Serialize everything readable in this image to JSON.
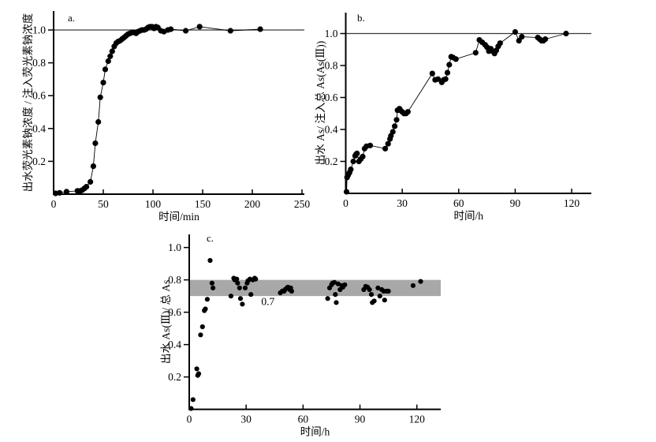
{
  "figure": {
    "background": "#ffffff",
    "axis_color": "#000000",
    "marker_color": "#000000"
  },
  "chart_data": [
    {
      "id": "a",
      "type": "scatter",
      "panel_label": "a.",
      "xlabel": "时间/min",
      "ylabel": "出水荧光素钠浓度 / 注入荧光素钠浓度",
      "xlim": [
        0,
        252
      ],
      "ylim": [
        0,
        1.12
      ],
      "xticks": [
        0,
        50,
        100,
        150,
        200,
        250
      ],
      "yticks": [
        0.2,
        0.4,
        0.6,
        0.8,
        1.0
      ],
      "grid": false,
      "reference_line_y": 1.0,
      "connect_points": true,
      "points": [
        [
          2,
          0.005
        ],
        [
          6,
          0.008
        ],
        [
          13,
          0.015
        ],
        [
          24,
          0.02
        ],
        [
          27,
          0.02
        ],
        [
          29,
          0.025
        ],
        [
          31,
          0.035
        ],
        [
          33,
          0.045
        ],
        [
          37,
          0.075
        ],
        [
          40,
          0.17
        ],
        [
          42,
          0.31
        ],
        [
          45,
          0.44
        ],
        [
          47,
          0.59
        ],
        [
          50,
          0.68
        ],
        [
          52,
          0.76
        ],
        [
          55,
          0.81
        ],
        [
          57,
          0.84
        ],
        [
          59,
          0.87
        ],
        [
          61,
          0.9
        ],
        [
          63,
          0.92
        ],
        [
          65,
          0.93
        ],
        [
          67,
          0.935
        ],
        [
          69,
          0.945
        ],
        [
          71,
          0.955
        ],
        [
          73,
          0.965
        ],
        [
          75,
          0.975
        ],
        [
          77,
          0.98
        ],
        [
          79,
          0.985
        ],
        [
          81,
          0.985
        ],
        [
          83,
          0.98
        ],
        [
          85,
          0.99
        ],
        [
          87,
          0.995
        ],
        [
          89,
          1.0
        ],
        [
          91,
          1.0
        ],
        [
          93,
          1.005
        ],
        [
          95,
          1.015
        ],
        [
          97,
          1.02
        ],
        [
          99,
          1.02
        ],
        [
          101,
          1.01
        ],
        [
          103,
          1.02
        ],
        [
          105,
          1.015
        ],
        [
          108,
          0.995
        ],
        [
          111,
          0.99
        ],
        [
          115,
          1.0
        ],
        [
          118,
          1.005
        ],
        [
          133,
          0.995
        ],
        [
          147,
          1.02
        ],
        [
          178,
          0.995
        ],
        [
          208,
          1.005
        ]
      ]
    },
    {
      "id": "b",
      "type": "scatter",
      "panel_label": "b.",
      "xlabel": "时间/h",
      "ylabel": "出水 As/ 注入总 As(As(Ⅲ))",
      "xlim": [
        0,
        130
      ],
      "ylim": [
        0,
        1.12
      ],
      "xticks": [
        0,
        30,
        60,
        90,
        120
      ],
      "yticks": [
        0.2,
        0.4,
        0.6,
        0.8,
        1.0
      ],
      "grid": false,
      "reference_line_y": 1.0,
      "connect_points": true,
      "points": [
        [
          0.4,
          0.01
        ],
        [
          0.7,
          0.1
        ],
        [
          1.3,
          0.115
        ],
        [
          2,
          0.13
        ],
        [
          2.7,
          0.15
        ],
        [
          4,
          0.2
        ],
        [
          5,
          0.235
        ],
        [
          5.5,
          0.245
        ],
        [
          6,
          0.25
        ],
        [
          7,
          0.2
        ],
        [
          8,
          0.215
        ],
        [
          9,
          0.23
        ],
        [
          10,
          0.28
        ],
        [
          11,
          0.295
        ],
        [
          13,
          0.3
        ],
        [
          21,
          0.28
        ],
        [
          22.5,
          0.31
        ],
        [
          23.5,
          0.34
        ],
        [
          24,
          0.36
        ],
        [
          25,
          0.385
        ],
        [
          26,
          0.42
        ],
        [
          27,
          0.46
        ],
        [
          27.5,
          0.52
        ],
        [
          28.5,
          0.53
        ],
        [
          29,
          0.52
        ],
        [
          30,
          0.51
        ],
        [
          31,
          0.5
        ],
        [
          32,
          0.5
        ],
        [
          33,
          0.51
        ],
        [
          46,
          0.75
        ],
        [
          47.5,
          0.71
        ],
        [
          49,
          0.715
        ],
        [
          51,
          0.695
        ],
        [
          52,
          0.71
        ],
        [
          53,
          0.715
        ],
        [
          54,
          0.755
        ],
        [
          55,
          0.805
        ],
        [
          56,
          0.855
        ],
        [
          57,
          0.85
        ],
        [
          58.5,
          0.84
        ],
        [
          69,
          0.88
        ],
        [
          71,
          0.96
        ],
        [
          72.5,
          0.945
        ],
        [
          74,
          0.93
        ],
        [
          75,
          0.915
        ],
        [
          76,
          0.89
        ],
        [
          77,
          0.905
        ],
        [
          78,
          0.89
        ],
        [
          79,
          0.875
        ],
        [
          80,
          0.895
        ],
        [
          81,
          0.92
        ],
        [
          82,
          0.94
        ],
        [
          90,
          1.01
        ],
        [
          92,
          0.955
        ],
        [
          93.5,
          0.98
        ],
        [
          102,
          0.975
        ],
        [
          103,
          0.965
        ],
        [
          104,
          0.955
        ],
        [
          105,
          0.955
        ],
        [
          106,
          0.965
        ],
        [
          117,
          1.0
        ]
      ]
    },
    {
      "id": "c",
      "type": "scatter",
      "panel_label": "c.",
      "xlabel": "时间/h",
      "ylabel": "出水 As(Ⅲ)/ 总 As",
      "xlim": [
        0,
        132
      ],
      "ylim": [
        0,
        1.08
      ],
      "xticks": [
        0,
        30,
        60,
        90,
        120
      ],
      "yticks": [
        0.2,
        0.4,
        0.6,
        0.8,
        1.0
      ],
      "grid": false,
      "connect_points": false,
      "band": {
        "y_from": 0.7,
        "y_to": 0.8,
        "color": "#a8a8a8"
      },
      "annotation": {
        "text": "0.7",
        "x": 38,
        "y": 0.645
      },
      "points": [
        [
          1,
          0.005
        ],
        [
          2,
          0.06
        ],
        [
          4,
          0.25
        ],
        [
          4.5,
          0.21
        ],
        [
          5,
          0.22
        ],
        [
          6,
          0.46
        ],
        [
          7,
          0.51
        ],
        [
          8,
          0.61
        ],
        [
          8.5,
          0.62
        ],
        [
          9.5,
          0.68
        ],
        [
          11,
          0.92
        ],
        [
          12,
          0.78
        ],
        [
          12.5,
          0.75
        ],
        [
          22,
          0.7
        ],
        [
          23.5,
          0.81
        ],
        [
          24,
          0.8
        ],
        [
          25,
          0.805
        ],
        [
          25.5,
          0.78
        ],
        [
          26.5,
          0.75
        ],
        [
          27,
          0.685
        ],
        [
          28,
          0.65
        ],
        [
          29.5,
          0.75
        ],
        [
          30.5,
          0.78
        ],
        [
          31,
          0.795
        ],
        [
          32,
          0.805
        ],
        [
          32.5,
          0.71
        ],
        [
          33.5,
          0.8
        ],
        [
          34.5,
          0.81
        ],
        [
          35,
          0.805
        ],
        [
          48,
          0.72
        ],
        [
          49,
          0.73
        ],
        [
          50,
          0.73
        ],
        [
          50.5,
          0.74
        ],
        [
          51.5,
          0.75
        ],
        [
          52,
          0.755
        ],
        [
          53,
          0.74
        ],
        [
          53.5,
          0.75
        ],
        [
          54,
          0.73
        ],
        [
          73,
          0.685
        ],
        [
          74,
          0.75
        ],
        [
          75,
          0.77
        ],
        [
          75.5,
          0.78
        ],
        [
          76.5,
          0.785
        ],
        [
          77,
          0.71
        ],
        [
          77.5,
          0.66
        ],
        [
          78.5,
          0.775
        ],
        [
          79.5,
          0.74
        ],
        [
          80.5,
          0.765
        ],
        [
          81,
          0.755
        ],
        [
          82,
          0.77
        ],
        [
          92,
          0.74
        ],
        [
          93,
          0.76
        ],
        [
          94,
          0.755
        ],
        [
          95,
          0.74
        ],
        [
          96,
          0.71
        ],
        [
          96.5,
          0.66
        ],
        [
          97.5,
          0.67
        ],
        [
          99.5,
          0.75
        ],
        [
          100.5,
          0.7
        ],
        [
          101.5,
          0.74
        ],
        [
          102.5,
          0.73
        ],
        [
          103,
          0.675
        ],
        [
          104,
          0.73
        ],
        [
          105,
          0.73
        ],
        [
          118,
          0.765
        ],
        [
          122,
          0.79
        ]
      ]
    }
  ]
}
